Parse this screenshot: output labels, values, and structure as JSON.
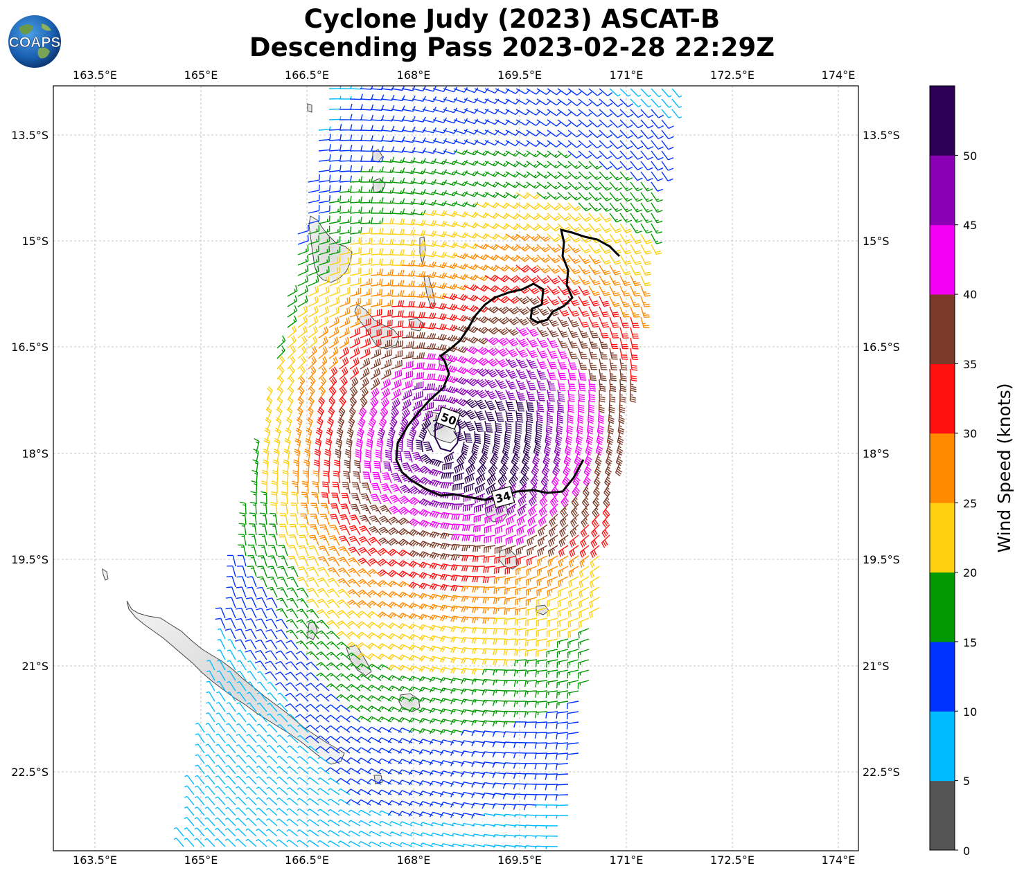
{
  "title": {
    "line1": "Cyclone Judy (2023) ASCAT-B",
    "line2": "Descending Pass 2023-02-28 22:29Z"
  },
  "logo": {
    "text": "COAPS",
    "icon": "globe-logo-icon"
  },
  "map": {
    "lon_range": [
      163.2,
      174.3
    ],
    "lat_range": [
      -24.2,
      -12.8
    ],
    "x_ticks": [
      "163.5°E",
      "165°E",
      "166.5°E",
      "168°E",
      "169.5°E",
      "171°E",
      "172.5°E",
      "174°E"
    ],
    "y_ticks": [
      "13.5°S",
      "15°S",
      "16.5°S",
      "18°S",
      "19.5°S",
      "21°S",
      "22.5°S"
    ],
    "gridlines": true,
    "contour_labels": [
      "50",
      "34"
    ]
  },
  "colorbar": {
    "title": "Wind Speed (knots)",
    "tick_labels": [
      "0",
      "5",
      "10",
      "15",
      "20",
      "25",
      "30",
      "35",
      "40",
      "45",
      "50"
    ],
    "colors": [
      "#555555",
      "#00bbff",
      "#0033ff",
      "#009900",
      "#ffd010",
      "#ff8a00",
      "#ff1010",
      "#7b3a28",
      "#f500f5",
      "#8a00b5",
      "#2d0055"
    ]
  }
}
